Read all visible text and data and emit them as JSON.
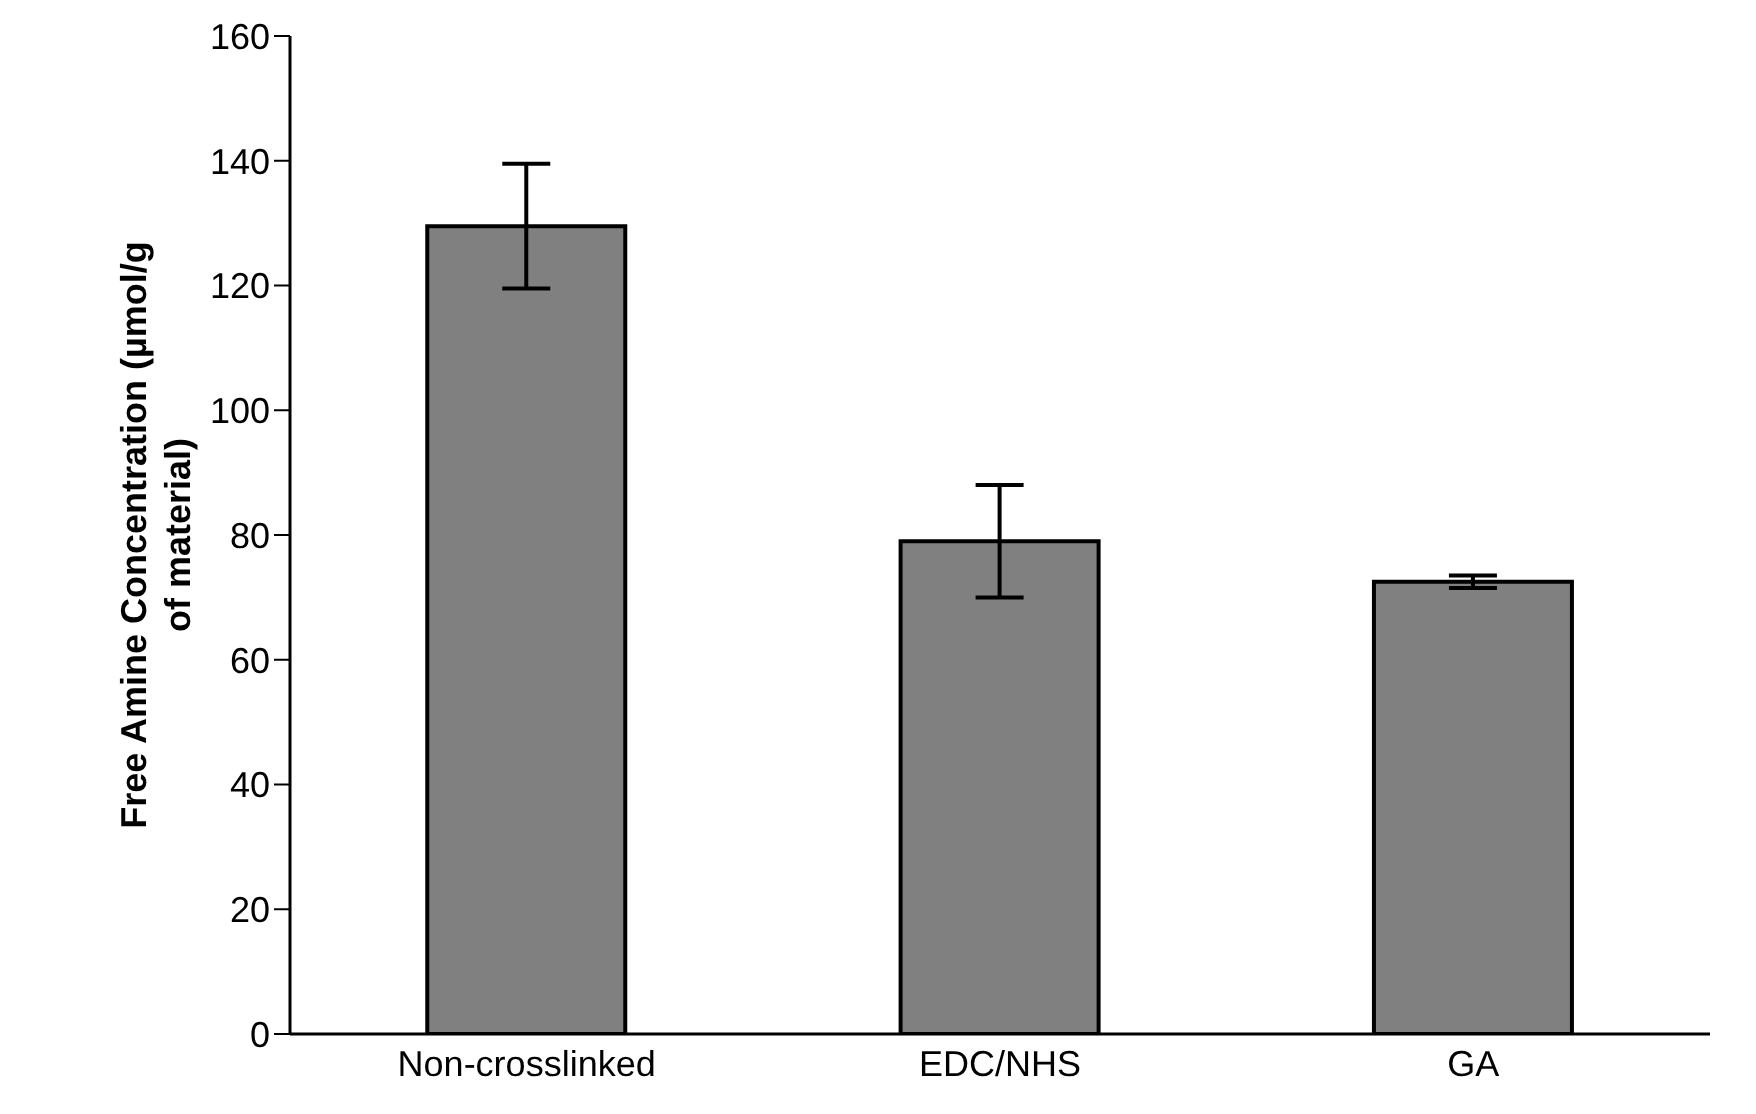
{
  "chart_data": {
    "type": "bar",
    "ylabel": "Free Amine Concentration (µmol/g of material)",
    "categories": [
      "Non-crosslinked",
      "EDC/NHS",
      "GA"
    ],
    "values": [
      129.5,
      79,
      72.5
    ],
    "errors": [
      10,
      9,
      1
    ],
    "color": "#808080",
    "ylim": [
      0,
      160
    ],
    "yticks": [
      0,
      20,
      40,
      60,
      80,
      100,
      120,
      140,
      160
    ],
    "grid": false,
    "legend": false
  }
}
